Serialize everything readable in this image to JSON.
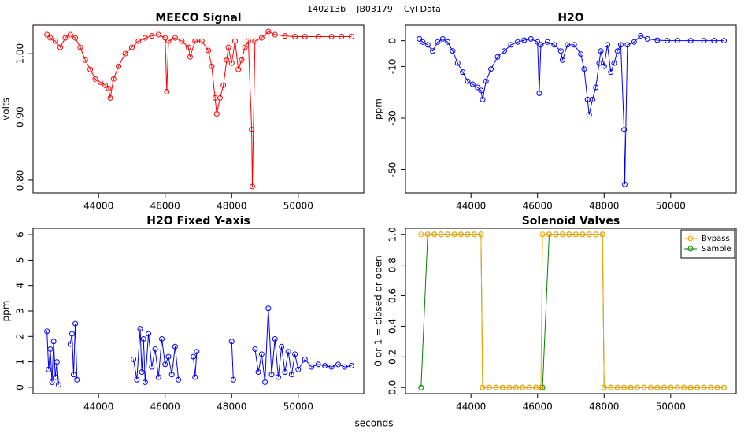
{
  "page_title": "140213b    JB03179    Cyl Data",
  "x_label": "seconds",
  "chart_data": [
    {
      "type": "line",
      "title": "MEECO Signal",
      "y_label": "volts",
      "x": [
        42450,
        42550,
        42700,
        42850,
        43000,
        43150,
        43300,
        43450,
        43600,
        43750,
        43900,
        44050,
        44200,
        44300,
        44350,
        44450,
        44600,
        44800,
        45000,
        45200,
        45400,
        45600,
        45800,
        46000,
        46050,
        46100,
        46300,
        46500,
        46700,
        46750,
        46900,
        47100,
        47300,
        47400,
        47500,
        47550,
        47650,
        47750,
        47850,
        47900,
        48000,
        48100,
        48200,
        48300,
        48400,
        48500,
        48600,
        48620,
        48700,
        48900,
        49100,
        49300,
        49600,
        49900,
        50200,
        50600,
        51000,
        51300,
        51600
      ],
      "series": [
        {
          "color": "#ff0000",
          "values": [
            1.03,
            1.025,
            1.02,
            1.01,
            1.025,
            1.03,
            1.025,
            1.01,
            0.99,
            0.975,
            0.96,
            0.955,
            0.95,
            0.945,
            0.93,
            0.96,
            0.98,
            1.0,
            1.01,
            1.02,
            1.025,
            1.028,
            1.03,
            1.025,
            0.94,
            1.02,
            1.025,
            1.02,
            1.01,
            0.995,
            1.02,
            1.02,
            1.005,
            0.98,
            0.93,
            0.905,
            0.93,
            0.95,
            0.99,
            1.01,
            0.985,
            1.02,
            0.975,
            0.99,
            1.01,
            1.02,
            0.88,
            0.79,
            1.02,
            1.025,
            1.035,
            1.03,
            1.028,
            1.027,
            1.027,
            1.027,
            1.027,
            1.027,
            1.027
          ]
        }
      ],
      "xlim": [
        42032,
        51968
      ],
      "xticks": [
        44000,
        46000,
        48000,
        50000
      ],
      "ylim": [
        0.78,
        1.045
      ],
      "yticks": [
        {
          "value": 0.8,
          "label": "0.80"
        },
        {
          "value": 0.9,
          "label": "0.90"
        },
        {
          "value": 1.0,
          "label": "1.00"
        }
      ]
    },
    {
      "type": "line",
      "title": "H2O",
      "y_label": "ppm",
      "x": [
        42450,
        42550,
        42700,
        42850,
        43000,
        43150,
        43300,
        43450,
        43600,
        43750,
        43900,
        44050,
        44200,
        44300,
        44350,
        44450,
        44600,
        44800,
        45000,
        45200,
        45400,
        45600,
        45800,
        46000,
        46050,
        46100,
        46300,
        46500,
        46700,
        46750,
        46900,
        47100,
        47300,
        47400,
        47500,
        47550,
        47650,
        47750,
        47850,
        47900,
        48000,
        48100,
        48200,
        48300,
        48400,
        48500,
        48600,
        48620,
        48700,
        48900,
        49100,
        49300,
        49600,
        49900,
        50200,
        50600,
        51000,
        51300,
        51600
      ],
      "series": [
        {
          "color": "#0000ff",
          "values": [
            0.7,
            -0.5,
            -1.6,
            -4,
            -0.5,
            0.7,
            -0.5,
            -4,
            -8.7,
            -12.2,
            -15.7,
            -16.9,
            -18.1,
            -19.3,
            -22.8,
            -15.7,
            -11,
            -6.3,
            -4,
            -1.6,
            -0.5,
            0.2,
            0.7,
            -0.5,
            -20.4,
            -1.6,
            -0.5,
            -1.6,
            -4,
            -7.5,
            -1.6,
            -1.6,
            -5.2,
            -11,
            -22.8,
            -28.7,
            -22.8,
            -18.1,
            -8.7,
            -4,
            -9.9,
            -1.6,
            -12.2,
            -8.7,
            -4,
            -1.6,
            -34.5,
            -55.7,
            -1.6,
            -0.5,
            1.9,
            0.7,
            0.2,
            0,
            0,
            0,
            0,
            0,
            0
          ]
        }
      ],
      "xlim": [
        42032,
        51968
      ],
      "xticks": [
        44000,
        46000,
        48000,
        50000
      ],
      "ylim": [
        -59,
        6
      ],
      "yticks": [
        -50,
        -30,
        -10,
        0
      ]
    },
    {
      "type": "line",
      "title": "H2O Fixed Y-axis",
      "y_label": "ppm",
      "x": [
        42450,
        42500,
        42550,
        42600,
        42650,
        42700,
        42750,
        42800,
        42900,
        43150,
        43200,
        43250,
        43300,
        43350,
        43500,
        45050,
        45150,
        45250,
        45300,
        45350,
        45400,
        45500,
        45600,
        45700,
        45800,
        45900,
        46000,
        46100,
        46200,
        46300,
        46400,
        46600,
        46850,
        46900,
        46950,
        47500,
        48000,
        48050,
        48400,
        48700,
        48800,
        48900,
        49000,
        49100,
        49200,
        49300,
        49400,
        49500,
        49600,
        49700,
        49800,
        49900,
        50000,
        50200,
        50400,
        50600,
        50800,
        51000,
        51200,
        51400,
        51600
      ],
      "series": [
        {
          "color": "#0000ff",
          "values": [
            2.2,
            0.7,
            1.5,
            0.2,
            1.8,
            0.4,
            1.0,
            0.1,
            null,
            1.7,
            2.1,
            0.5,
            2.5,
            0.3,
            null,
            1.1,
            0.3,
            2.3,
            0.6,
            1.9,
            0.2,
            2.1,
            0.8,
            1.5,
            0.4,
            1.9,
            0.9,
            1.2,
            0.5,
            1.6,
            0.3,
            null,
            1.2,
            0.4,
            1.4,
            null,
            1.8,
            0.3,
            null,
            1.5,
            0.6,
            1.3,
            0.2,
            3.1,
            0.5,
            1.9,
            0.4,
            1.6,
            0.6,
            1.4,
            0.5,
            1.3,
            0.7,
            1.1,
            0.8,
            0.9,
            0.85,
            0.8,
            0.9,
            0.8,
            0.85
          ]
        }
      ],
      "xlim": [
        42032,
        51968
      ],
      "xticks": [
        44000,
        46000,
        48000,
        50000
      ],
      "ylim": [
        -0.25,
        6.25
      ],
      "yticks": [
        0,
        1,
        2,
        3,
        4,
        5,
        6
      ]
    },
    {
      "type": "line",
      "title": "Solenoid Valves",
      "y_label": "0 or 1 = closed or open",
      "legend": "topright",
      "x": [
        42500,
        42700,
        42900,
        43100,
        43300,
        43500,
        43700,
        43900,
        44100,
        44300,
        44350,
        44550,
        44750,
        44950,
        45150,
        45350,
        45550,
        45750,
        45950,
        46100,
        46150,
        46350,
        46550,
        46750,
        46950,
        47150,
        47350,
        47550,
        47750,
        47950,
        48000,
        48200,
        48400,
        48600,
        48800,
        49000,
        49200,
        49400,
        49600,
        49800,
        50000,
        50200,
        50400,
        50600,
        50800,
        51000,
        51200,
        51400,
        51600
      ],
      "series": [
        {
          "name": "Sample",
          "color": "#008000",
          "values": [
            0,
            1,
            1,
            1,
            1,
            1,
            1,
            1,
            1,
            1,
            0,
            0,
            0,
            0,
            0,
            0,
            0,
            0,
            0,
            0,
            0,
            1,
            1,
            1,
            1,
            1,
            1,
            1,
            1,
            1,
            0,
            0,
            0,
            0,
            0,
            0,
            0,
            0,
            0,
            0,
            0,
            0,
            0,
            0,
            0,
            0,
            0,
            0,
            0
          ]
        },
        {
          "name": "Bypass",
          "color": "#ffa500",
          "values": [
            1,
            1,
            1,
            1,
            1,
            1,
            1,
            1,
            1,
            1,
            0,
            0,
            0,
            0,
            0,
            0,
            0,
            0,
            0,
            0,
            1,
            1,
            1,
            1,
            1,
            1,
            1,
            1,
            1,
            1,
            0,
            0,
            0,
            0,
            0,
            0,
            0,
            0,
            0,
            0,
            0,
            0,
            0,
            0,
            0,
            0,
            0,
            0,
            0
          ]
        }
      ],
      "xlim": [
        42032,
        51968
      ],
      "xticks": [
        44000,
        46000,
        48000,
        50000
      ],
      "ylim": [
        -0.04,
        1.04
      ],
      "yticks": [
        {
          "value": 0,
          "label": "0.0"
        },
        {
          "value": 0.2,
          "label": "0.2"
        },
        {
          "value": 0.4,
          "label": "0.4"
        },
        {
          "value": 0.6,
          "label": "0.6"
        },
        {
          "value": 0.8,
          "label": "0.8"
        },
        {
          "value": 1,
          "label": "1.0"
        }
      ]
    }
  ]
}
